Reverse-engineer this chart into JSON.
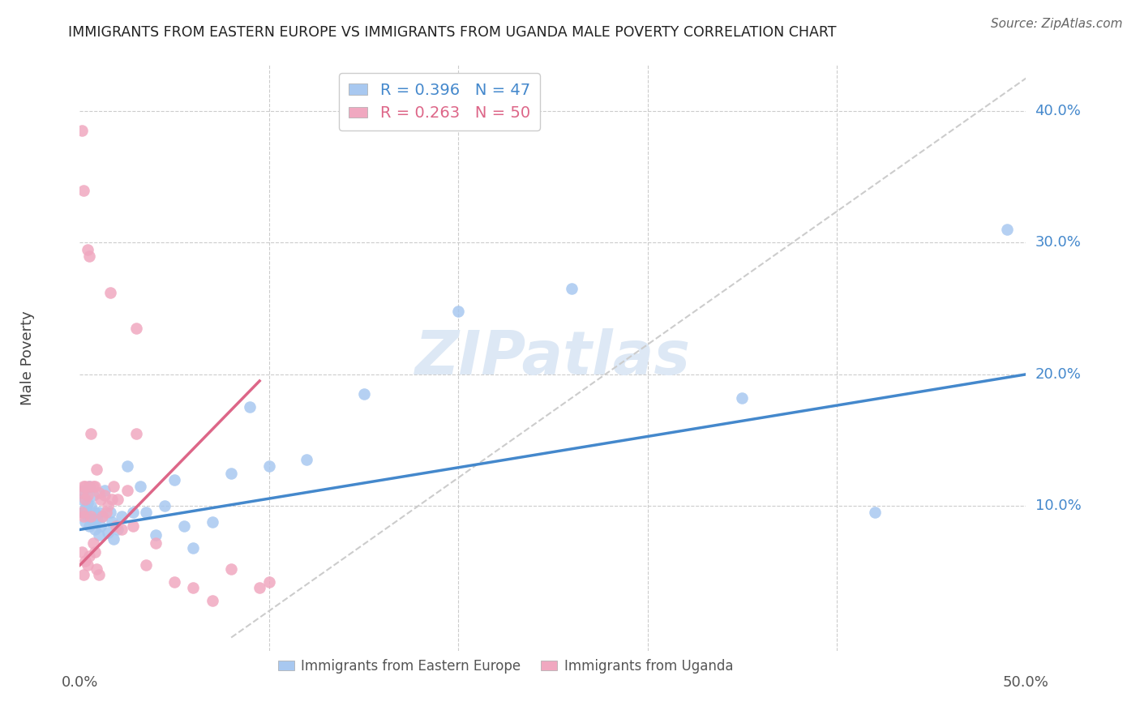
{
  "title": "IMMIGRANTS FROM EASTERN EUROPE VS IMMIGRANTS FROM UGANDA MALE POVERTY CORRELATION CHART",
  "source": "Source: ZipAtlas.com",
  "ylabel": "Male Poverty",
  "ylabel_ticks": [
    "10.0%",
    "20.0%",
    "30.0%",
    "40.0%"
  ],
  "ylabel_tick_vals": [
    0.1,
    0.2,
    0.3,
    0.4
  ],
  "xlim": [
    0.0,
    0.5
  ],
  "ylim": [
    -0.01,
    0.435
  ],
  "blue_color": "#a8c8f0",
  "pink_color": "#f0a8c0",
  "blue_line_color": "#4488cc",
  "pink_line_color": "#dd6688",
  "blue_R": 0.396,
  "blue_N": 47,
  "pink_R": 0.263,
  "pink_N": 50,
  "watermark": "ZIPatlas",
  "blue_points_x": [
    0.001,
    0.002,
    0.002,
    0.003,
    0.003,
    0.004,
    0.004,
    0.005,
    0.005,
    0.006,
    0.006,
    0.007,
    0.007,
    0.008,
    0.008,
    0.009,
    0.01,
    0.01,
    0.011,
    0.012,
    0.013,
    0.015,
    0.016,
    0.017,
    0.018,
    0.02,
    0.022,
    0.025,
    0.028,
    0.032,
    0.035,
    0.04,
    0.045,
    0.05,
    0.055,
    0.06,
    0.07,
    0.08,
    0.09,
    0.1,
    0.12,
    0.15,
    0.2,
    0.26,
    0.35,
    0.42,
    0.49
  ],
  "blue_points_y": [
    0.105,
    0.095,
    0.112,
    0.088,
    0.098,
    0.092,
    0.102,
    0.085,
    0.115,
    0.09,
    0.1,
    0.088,
    0.108,
    0.082,
    0.095,
    0.09,
    0.095,
    0.078,
    0.085,
    0.092,
    0.112,
    0.08,
    0.095,
    0.088,
    0.075,
    0.082,
    0.092,
    0.13,
    0.095,
    0.115,
    0.095,
    0.078,
    0.1,
    0.12,
    0.085,
    0.068,
    0.088,
    0.125,
    0.175,
    0.13,
    0.135,
    0.185,
    0.248,
    0.265,
    0.182,
    0.095,
    0.31
  ],
  "pink_points_x": [
    0.001,
    0.001,
    0.001,
    0.001,
    0.002,
    0.002,
    0.002,
    0.002,
    0.003,
    0.003,
    0.003,
    0.004,
    0.004,
    0.004,
    0.005,
    0.005,
    0.005,
    0.006,
    0.006,
    0.007,
    0.007,
    0.008,
    0.008,
    0.009,
    0.009,
    0.01,
    0.01,
    0.011,
    0.012,
    0.013,
    0.014,
    0.015,
    0.016,
    0.017,
    0.018,
    0.019,
    0.02,
    0.022,
    0.025,
    0.028,
    0.03,
    0.035,
    0.04,
    0.05,
    0.06,
    0.07,
    0.08,
    0.095,
    0.1,
    0.03
  ],
  "pink_points_y": [
    0.385,
    0.11,
    0.095,
    0.065,
    0.34,
    0.115,
    0.092,
    0.048,
    0.115,
    0.105,
    0.058,
    0.295,
    0.108,
    0.055,
    0.29,
    0.115,
    0.062,
    0.155,
    0.092,
    0.115,
    0.072,
    0.115,
    0.065,
    0.128,
    0.052,
    0.11,
    0.048,
    0.105,
    0.092,
    0.108,
    0.095,
    0.1,
    0.262,
    0.105,
    0.115,
    0.085,
    0.105,
    0.082,
    0.112,
    0.085,
    0.155,
    0.055,
    0.072,
    0.042,
    0.038,
    0.028,
    0.052,
    0.038,
    0.042,
    0.235
  ],
  "diag_line": [
    [
      0.08,
      0.0
    ],
    [
      0.5,
      0.425
    ]
  ],
  "blue_line_manual": [
    [
      0.0,
      0.082
    ],
    [
      0.5,
      0.2
    ]
  ],
  "pink_line_manual": [
    [
      0.0,
      0.055
    ],
    [
      0.095,
      0.195
    ]
  ]
}
